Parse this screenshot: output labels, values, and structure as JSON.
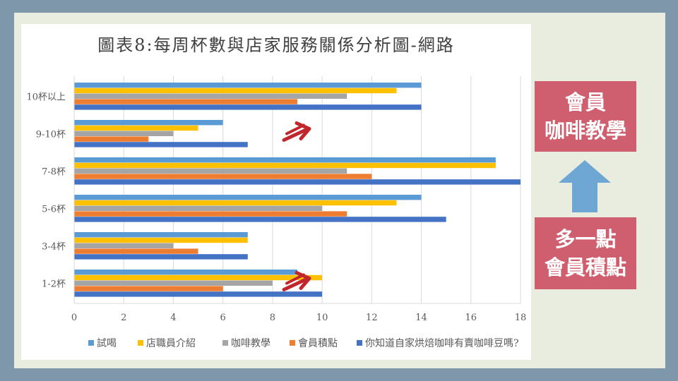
{
  "chart_data": {
    "type": "bar",
    "orientation": "horizontal",
    "title": "圖表8:每周杯數與店家服務關係分析圖-網路",
    "categories": [
      "10杯以上",
      "9-10杯",
      "7-8杯",
      "5-6杯",
      "3-4杯",
      "1-2杯"
    ],
    "series": [
      {
        "name": "試喝",
        "color": "#5b9bd5",
        "values": [
          14,
          6,
          17,
          14,
          7,
          9
        ]
      },
      {
        "name": "店職員介紹",
        "color": "#ffc000",
        "values": [
          13,
          5,
          17,
          13,
          7,
          10
        ]
      },
      {
        "name": "咖啡教學",
        "color": "#a5a5a5",
        "values": [
          11,
          4,
          11,
          10,
          4,
          8
        ]
      },
      {
        "name": "會員積點",
        "color": "#ed7d31",
        "values": [
          9,
          3,
          12,
          11,
          5,
          6
        ]
      },
      {
        "name": "你知道自家烘焙咖啡有賣咖啡豆嗎?",
        "color": "#4472c4",
        "values": [
          14,
          7,
          18,
          15,
          7,
          10
        ]
      }
    ],
    "xlim": [
      0,
      18
    ],
    "xticks": [
      "0",
      "2",
      "4",
      "6",
      "8",
      "10",
      "12",
      "14",
      "16",
      "18"
    ],
    "grid": true,
    "legend_position": "bottom",
    "annotation_arrows": [
      "9-10杯",
      "1-2杯"
    ],
    "annotation_color": "#c0272d"
  },
  "notes": {
    "top_lines": [
      "會員",
      "咖啡教學"
    ],
    "bottom_lines": [
      "多一點",
      "會員積點"
    ],
    "box_color": "#cf5f6e",
    "arrow_color": "#6ea6d4",
    "arrow_direction": "up"
  }
}
